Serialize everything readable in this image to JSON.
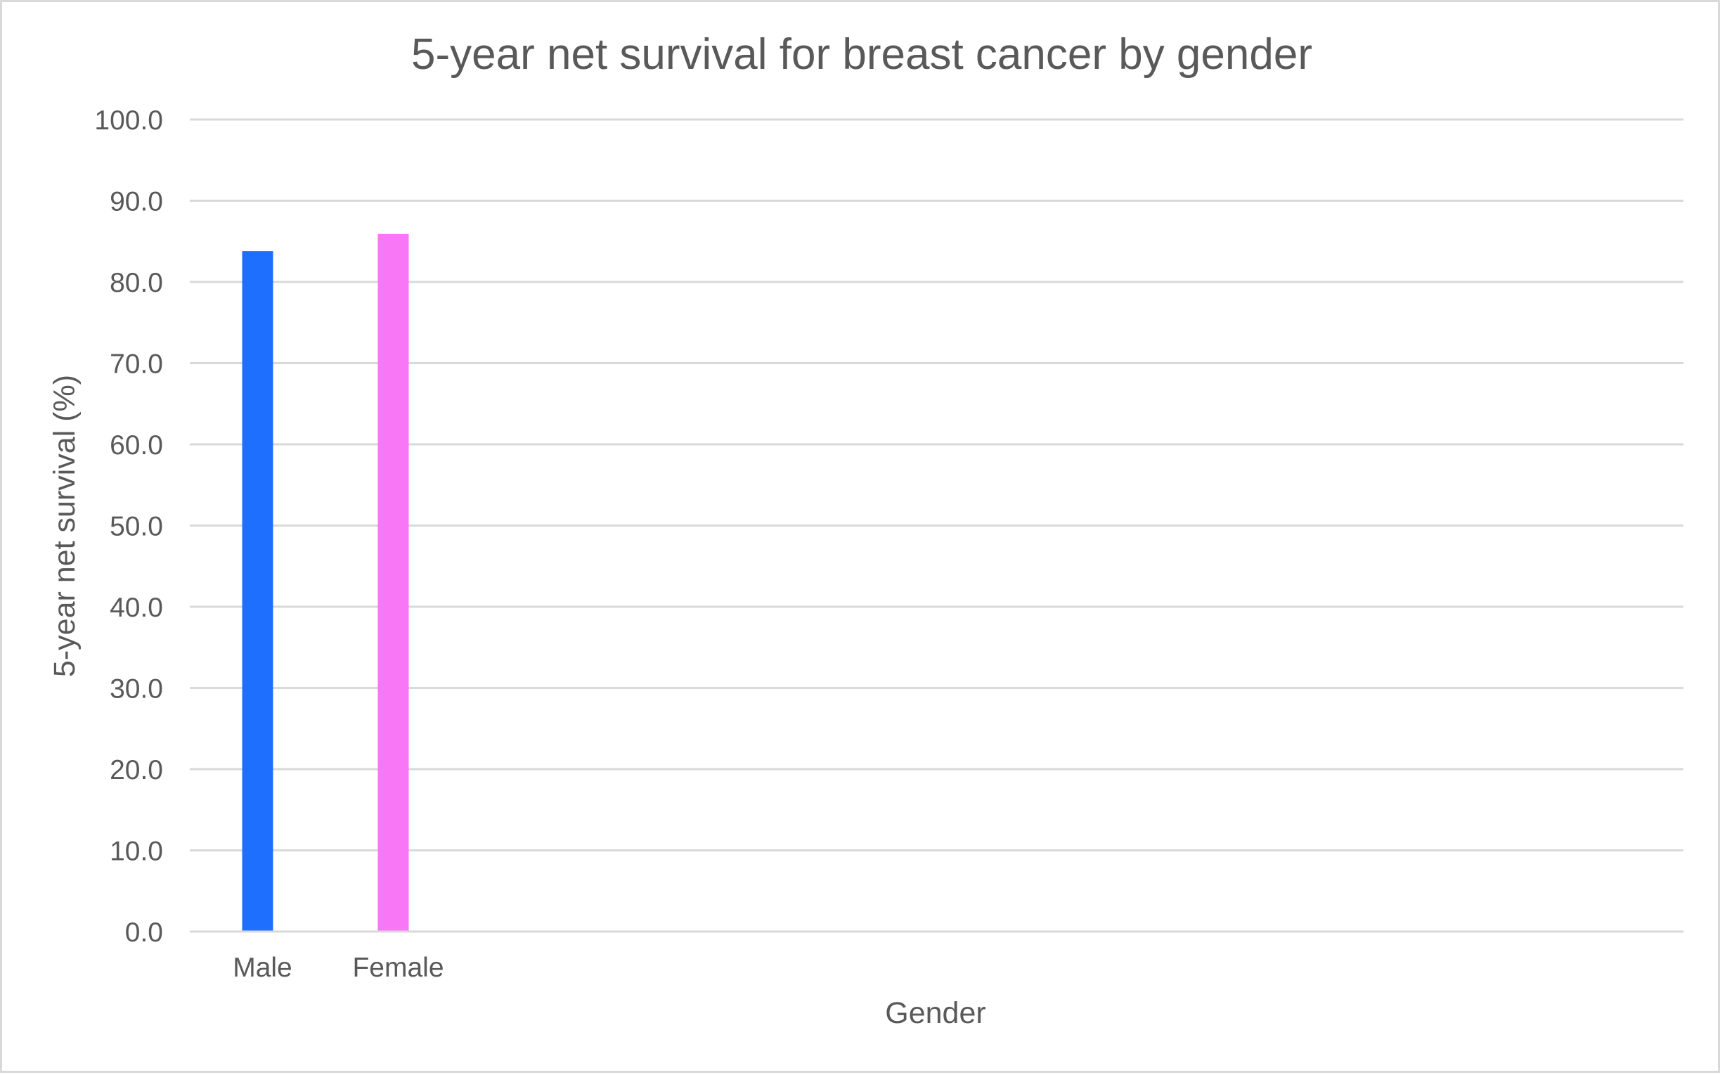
{
  "chart_data": {
    "type": "bar",
    "title": "5-year net survival for breast cancer by gender",
    "xlabel": "Gender",
    "ylabel": "5-year net survival (%)",
    "categories": [
      "Male",
      "Female"
    ],
    "values": [
      83.8,
      85.9
    ],
    "bar_colors": [
      "#1f6fff",
      "#f777f7"
    ],
    "ylim": [
      0,
      100
    ],
    "yticks": [
      "0.0",
      "10.0",
      "20.0",
      "30.0",
      "40.0",
      "50.0",
      "60.0",
      "70.0",
      "80.0",
      "90.0",
      "100.0"
    ],
    "grid": true,
    "legend": "none"
  }
}
